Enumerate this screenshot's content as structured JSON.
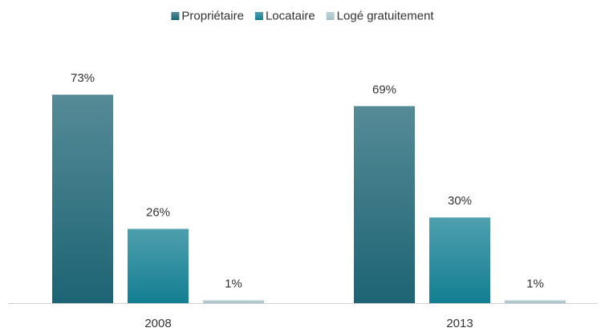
{
  "chart_data": {
    "type": "bar",
    "categories": [
      "2008",
      "2013"
    ],
    "series": [
      {
        "name": "Propriétaire",
        "color": "#1d6474",
        "values": [
          73,
          69
        ],
        "value_labels": [
          "73%",
          "69%"
        ]
      },
      {
        "name": "Locataire",
        "color": "#137f92",
        "values": [
          26,
          30
        ],
        "value_labels": [
          "26%",
          "30%"
        ]
      },
      {
        "name": "Logé gratuitement",
        "color": "#a7c2ca",
        "values": [
          1,
          1
        ],
        "value_labels": [
          "1%",
          "1%"
        ]
      }
    ],
    "legend": "top"
  }
}
